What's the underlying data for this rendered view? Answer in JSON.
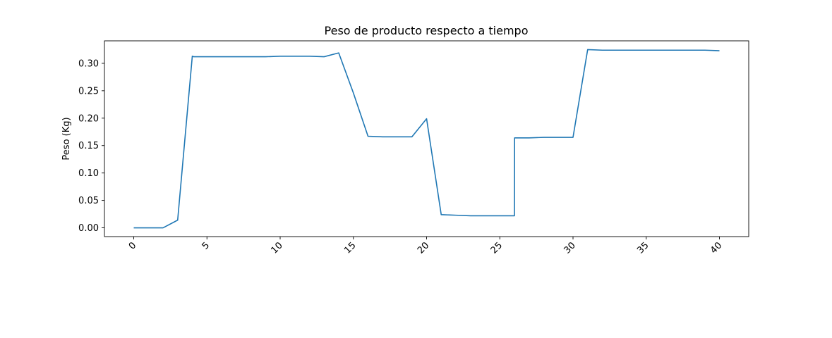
{
  "chart_data": {
    "type": "line",
    "title": "Peso de producto respecto a tiempo",
    "xlabel": "",
    "ylabel": "Peso (Kg)",
    "xlim": [
      -2,
      42
    ],
    "ylim": [
      -0.016,
      0.341
    ],
    "xticks": [
      0,
      5,
      10,
      15,
      20,
      25,
      30,
      35,
      40
    ],
    "yticks": [
      0.0,
      0.05,
      0.1,
      0.15,
      0.2,
      0.25,
      0.3
    ],
    "ytick_labels": [
      "0.00",
      "0.05",
      "0.10",
      "0.15",
      "0.20",
      "0.25",
      "0.30"
    ],
    "xtick_labels": [
      "0",
      "5",
      "10",
      "15",
      "20",
      "25",
      "30",
      "35",
      "40"
    ],
    "xtick_rotation": 45,
    "grid": false,
    "series": [
      {
        "color": "#1f77b4",
        "x": [
          0,
          1,
          2,
          3,
          4,
          4.1,
          5,
          6,
          7,
          8,
          9,
          10,
          11,
          12,
          13,
          14,
          15,
          16,
          17,
          18,
          19,
          20,
          21,
          22,
          23,
          24,
          25,
          26,
          26.01,
          27,
          28,
          29,
          30,
          31,
          32,
          33,
          34,
          35,
          36,
          37,
          38,
          39,
          40
        ],
        "y": [
          0.0,
          0.0,
          0.0,
          0.014,
          0.313,
          0.312,
          0.312,
          0.312,
          0.312,
          0.312,
          0.312,
          0.313,
          0.313,
          0.313,
          0.312,
          0.319,
          0.246,
          0.167,
          0.166,
          0.166,
          0.166,
          0.199,
          0.024,
          0.023,
          0.022,
          0.022,
          0.022,
          0.022,
          0.164,
          0.164,
          0.165,
          0.165,
          0.165,
          0.325,
          0.324,
          0.324,
          0.324,
          0.324,
          0.324,
          0.324,
          0.324,
          0.324,
          0.323
        ]
      }
    ]
  }
}
